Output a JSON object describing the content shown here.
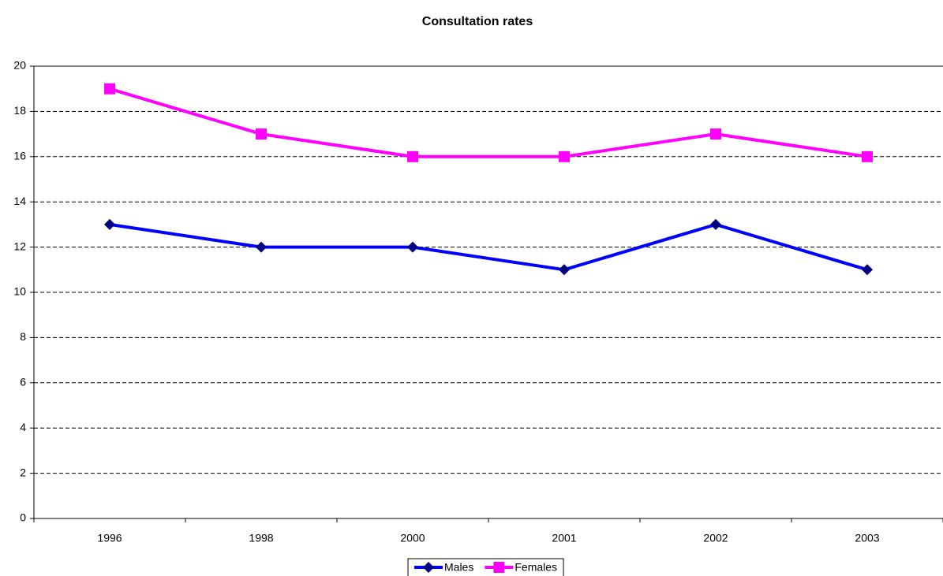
{
  "chart_data": {
    "type": "line",
    "title": "Consultation rates",
    "categories": [
      "1996",
      "1998",
      "2000",
      "2001",
      "2002",
      "2003"
    ],
    "series": [
      {
        "name": "Males",
        "color": "#0000ff",
        "marker_color": "#000080",
        "marker": "diamond",
        "values": [
          13,
          12,
          12,
          11,
          13,
          11
        ]
      },
      {
        "name": "Females",
        "color": "#ff00ff",
        "marker_color": "#ff00ff",
        "marker": "square",
        "values": [
          19,
          17,
          16,
          16,
          17,
          16
        ]
      }
    ],
    "ylim": [
      0,
      20
    ],
    "yticks": [
      0,
      2,
      4,
      6,
      8,
      10,
      12,
      14,
      16,
      18,
      20
    ],
    "grid": true,
    "legend": "bottom"
  }
}
